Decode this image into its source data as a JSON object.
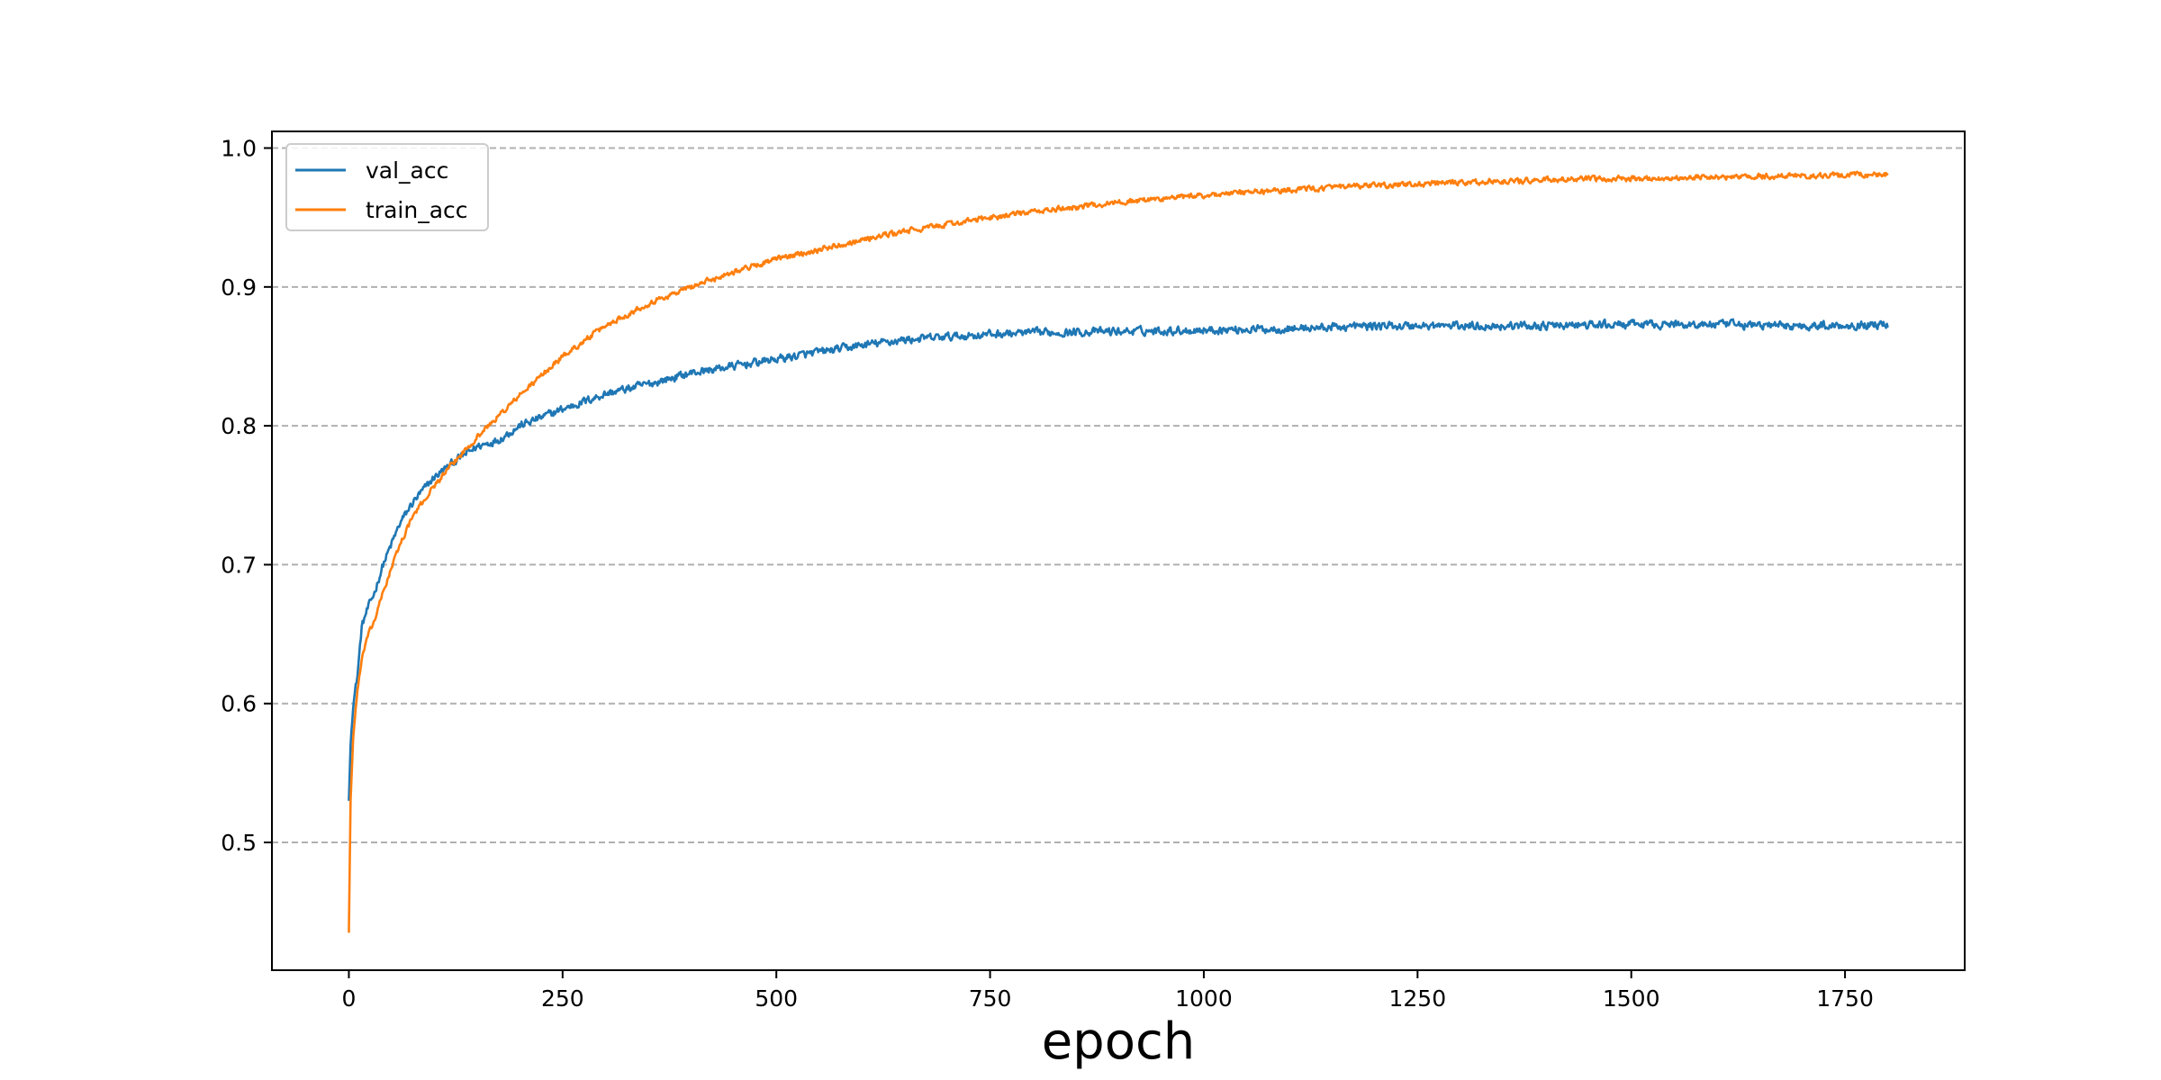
{
  "chart_data": {
    "type": "line",
    "title": "",
    "xlabel": "epoch",
    "ylabel": "",
    "xlim": [
      -90,
      1890
    ],
    "ylim": [
      0.408,
      1.012
    ],
    "xticks": [
      0,
      250,
      500,
      750,
      1000,
      1250,
      1500,
      1750
    ],
    "xtick_labels": [
      "0",
      "250",
      "500",
      "750",
      "1000",
      "1250",
      "1500",
      "1750"
    ],
    "yticks": [
      0.5,
      0.6,
      0.7,
      0.8,
      0.9,
      1.0
    ],
    "ytick_labels": [
      "0.5",
      "0.6",
      "0.7",
      "0.8",
      "0.9",
      "1.0"
    ],
    "grid": "horizontal dashed",
    "legend_position": "top-left",
    "x_range": [
      0,
      1800
    ],
    "series": [
      {
        "name": "val_acc",
        "color": "#1f77b4",
        "noise": 0.0045,
        "points": [
          [
            0,
            0.53
          ],
          [
            2,
            0.57
          ],
          [
            5,
            0.6
          ],
          [
            10,
            0.62
          ],
          [
            15,
            0.655
          ],
          [
            20,
            0.665
          ],
          [
            30,
            0.68
          ],
          [
            40,
            0.7
          ],
          [
            50,
            0.715
          ],
          [
            60,
            0.73
          ],
          [
            75,
            0.745
          ],
          [
            100,
            0.763
          ],
          [
            125,
            0.775
          ],
          [
            150,
            0.785
          ],
          [
            175,
            0.79
          ],
          [
            200,
            0.8
          ],
          [
            250,
            0.812
          ],
          [
            300,
            0.823
          ],
          [
            350,
            0.83
          ],
          [
            400,
            0.838
          ],
          [
            450,
            0.843
          ],
          [
            500,
            0.848
          ],
          [
            550,
            0.853
          ],
          [
            600,
            0.858
          ],
          [
            650,
            0.862
          ],
          [
            700,
            0.864
          ],
          [
            750,
            0.866
          ],
          [
            800,
            0.867
          ],
          [
            900,
            0.868
          ],
          [
            1000,
            0.869
          ],
          [
            1100,
            0.87
          ],
          [
            1200,
            0.872
          ],
          [
            1300,
            0.872
          ],
          [
            1400,
            0.872
          ],
          [
            1500,
            0.873
          ],
          [
            1600,
            0.873
          ],
          [
            1700,
            0.872
          ],
          [
            1800,
            0.873
          ]
        ]
      },
      {
        "name": "train_acc",
        "color": "#ff7f0e",
        "noise": 0.003,
        "points": [
          [
            0,
            0.435
          ],
          [
            2,
            0.53
          ],
          [
            5,
            0.575
          ],
          [
            10,
            0.61
          ],
          [
            15,
            0.63
          ],
          [
            20,
            0.645
          ],
          [
            30,
            0.66
          ],
          [
            40,
            0.68
          ],
          [
            50,
            0.698
          ],
          [
            60,
            0.715
          ],
          [
            75,
            0.735
          ],
          [
            100,
            0.757
          ],
          [
            125,
            0.775
          ],
          [
            150,
            0.792
          ],
          [
            175,
            0.807
          ],
          [
            200,
            0.822
          ],
          [
            250,
            0.85
          ],
          [
            300,
            0.872
          ],
          [
            350,
            0.888
          ],
          [
            400,
            0.9
          ],
          [
            450,
            0.911
          ],
          [
            500,
            0.92
          ],
          [
            550,
            0.927
          ],
          [
            600,
            0.934
          ],
          [
            650,
            0.94
          ],
          [
            700,
            0.945
          ],
          [
            750,
            0.95
          ],
          [
            800,
            0.954
          ],
          [
            900,
            0.961
          ],
          [
            1000,
            0.966
          ],
          [
            1100,
            0.97
          ],
          [
            1200,
            0.973
          ],
          [
            1300,
            0.975
          ],
          [
            1400,
            0.977
          ],
          [
            1500,
            0.978
          ],
          [
            1600,
            0.979
          ],
          [
            1700,
            0.98
          ],
          [
            1800,
            0.981
          ]
        ]
      }
    ]
  }
}
